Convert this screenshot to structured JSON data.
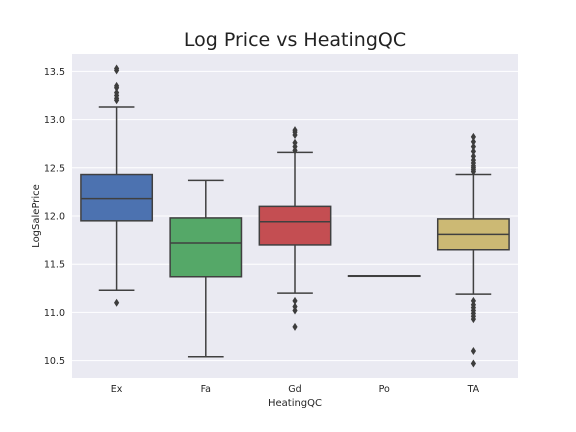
{
  "chart_data": {
    "type": "box",
    "title": "Log Price vs HeatingQC",
    "xlabel": "HeatingQC",
    "ylabel": "LogSalePrice",
    "ylim": [
      10.32,
      13.68
    ],
    "yticks": [
      "10.5",
      "11.0",
      "11.5",
      "12.0",
      "12.5",
      "13.0",
      "13.5"
    ],
    "grid": true,
    "categories": [
      "Ex",
      "Fa",
      "Gd",
      "Po",
      "TA"
    ],
    "boxes": [
      {
        "category": "Ex",
        "color": "#4c72b0",
        "whisker_low": 11.23,
        "q1": 11.95,
        "median": 12.18,
        "q3": 12.43,
        "whisker_high": 13.13,
        "outliers": [
          11.1,
          13.2,
          13.22,
          13.25,
          13.28,
          13.33,
          13.35,
          13.51,
          13.53
        ]
      },
      {
        "category": "Fa",
        "color": "#55a868",
        "whisker_low": 10.54,
        "q1": 11.37,
        "median": 11.72,
        "q3": 11.98,
        "whisker_high": 12.37,
        "outliers": []
      },
      {
        "category": "Gd",
        "color": "#c44e52",
        "whisker_low": 11.2,
        "q1": 11.7,
        "median": 11.94,
        "q3": 12.1,
        "whisker_high": 12.66,
        "outliers": [
          10.85,
          11.02,
          11.06,
          11.12,
          12.68,
          12.72,
          12.76,
          12.84,
          12.87,
          12.89
        ]
      },
      {
        "category": "Po",
        "color": "#8172b2",
        "whisker_low": 11.38,
        "q1": 11.38,
        "median": 11.38,
        "q3": 11.38,
        "whisker_high": 11.38,
        "outliers": []
      },
      {
        "category": "TA",
        "color": "#ccb974",
        "whisker_low": 11.19,
        "q1": 11.65,
        "median": 11.81,
        "q3": 11.97,
        "whisker_high": 12.43,
        "outliers": [
          10.47,
          10.6,
          10.93,
          10.96,
          10.99,
          11.02,
          11.05,
          11.08,
          11.12,
          12.46,
          12.48,
          12.5,
          12.52,
          12.55,
          12.58,
          12.62,
          12.67,
          12.72,
          12.77,
          12.82
        ]
      }
    ]
  },
  "colors": {
    "plot_background": "#eaeaf2",
    "grid": "#ffffff",
    "line": "#404040"
  }
}
